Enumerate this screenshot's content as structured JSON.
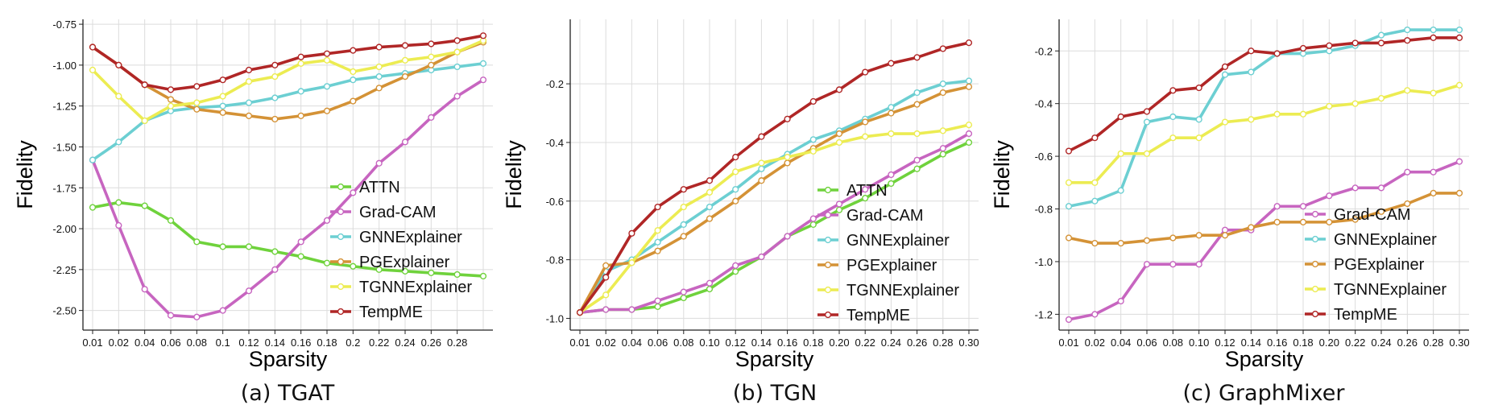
{
  "colors": {
    "ATTN": "#6fd23c",
    "Grad-CAM": "#c765c0",
    "GNNExplainer": "#6ccfd2",
    "PGExplainer": "#d49236",
    "TGNNExplainer": "#ecec52",
    "TempME": "#b02626"
  },
  "chart_data": [
    {
      "type": "line",
      "caption": "(a) TGAT",
      "xlabel": "Sparsity",
      "ylabel": "Fidelity",
      "x": [
        0.01,
        0.02,
        0.04,
        0.06,
        0.08,
        0.1,
        0.12,
        0.14,
        0.16,
        0.18,
        0.2,
        0.22,
        0.24,
        0.26,
        0.28,
        0.3
      ],
      "xticks": [
        "0.01",
        "0.02",
        "0.04",
        "0.06",
        "0.08",
        "0.1",
        "0.12",
        "0.14",
        "0.16",
        "0.18",
        "0.2",
        "0.22",
        "0.24",
        "0.26",
        "0.28"
      ],
      "yticks": [
        "-0.75",
        "-1.00",
        "-1.25",
        "-1.50",
        "-1.75",
        "-2.00",
        "-2.25",
        "-2.50"
      ],
      "ytick_values": [
        -0.75,
        -1.0,
        -1.25,
        -1.5,
        -1.75,
        -2.0,
        -2.25,
        -2.5
      ],
      "ylim": [
        -2.62,
        -0.72
      ],
      "grid": true,
      "legend_position": "lower-right",
      "legend": [
        "ATTN",
        "Grad-CAM",
        "GNNExplainer",
        "PGExplainer",
        "TGNNExplainer",
        "TempME"
      ],
      "series": [
        {
          "name": "ATTN",
          "values": [
            -1.87,
            -1.84,
            -1.86,
            -1.95,
            -2.08,
            -2.11,
            -2.11,
            -2.14,
            -2.17,
            -2.21,
            -2.23,
            -2.25,
            -2.26,
            -2.27,
            -2.28,
            -2.29
          ]
        },
        {
          "name": "Grad-CAM",
          "values": [
            -1.58,
            -1.98,
            -2.37,
            -2.53,
            -2.54,
            -2.5,
            -2.38,
            -2.25,
            -2.08,
            -1.95,
            -1.78,
            -1.6,
            -1.47,
            -1.32,
            -1.19,
            -1.09
          ]
        },
        {
          "name": "GNNExplainer",
          "values": [
            -1.58,
            -1.47,
            -1.34,
            -1.28,
            -1.26,
            -1.25,
            -1.23,
            -1.2,
            -1.16,
            -1.13,
            -1.09,
            -1.07,
            -1.05,
            -1.03,
            -1.01,
            -0.99
          ]
        },
        {
          "name": "PGExplainer",
          "values": [
            -0.89,
            -1.0,
            -1.12,
            -1.21,
            -1.27,
            -1.29,
            -1.31,
            -1.33,
            -1.31,
            -1.28,
            -1.22,
            -1.14,
            -1.07,
            -1.0,
            -0.92,
            -0.86
          ]
        },
        {
          "name": "TGNNExplainer",
          "values": [
            -1.03,
            -1.19,
            -1.34,
            -1.25,
            -1.23,
            -1.19,
            -1.1,
            -1.07,
            -0.99,
            -0.97,
            -1.04,
            -1.01,
            -0.97,
            -0.95,
            -0.92,
            -0.85
          ]
        },
        {
          "name": "TempME",
          "values": [
            -0.89,
            -1.0,
            -1.12,
            -1.15,
            -1.13,
            -1.09,
            -1.03,
            -1.0,
            -0.95,
            -0.93,
            -0.91,
            -0.89,
            -0.88,
            -0.87,
            -0.85,
            -0.82
          ]
        }
      ]
    },
    {
      "type": "line",
      "caption": "(b) TGN",
      "xlabel": "Sparsity",
      "ylabel": "Fidelity",
      "x": [
        0.01,
        0.02,
        0.04,
        0.06,
        0.08,
        0.1,
        0.12,
        0.14,
        0.16,
        0.18,
        0.2,
        0.22,
        0.24,
        0.26,
        0.28,
        0.3
      ],
      "xticks": [
        "0.01",
        "0.02",
        "0.04",
        "0.06",
        "0.08",
        "0.10",
        "0.12",
        "0.14",
        "0.16",
        "0.18",
        "0.20",
        "0.22",
        "0.24",
        "0.26",
        "0.28",
        "0.30"
      ],
      "yticks": [
        "-0.2",
        "-0.4",
        "-0.6",
        "-0.8",
        "-1.0"
      ],
      "ytick_values": [
        -0.2,
        -0.4,
        -0.6,
        -0.8,
        -1.0
      ],
      "ylim": [
        -1.04,
        0.02
      ],
      "grid": true,
      "legend_position": "lower-right",
      "legend": [
        "ATTN",
        "Grad-CAM",
        "GNNExplainer",
        "PGExplainer",
        "TGNNExplainer",
        "TempME"
      ],
      "series": [
        {
          "name": "ATTN",
          "values": [
            -0.98,
            -0.97,
            -0.97,
            -0.96,
            -0.93,
            -0.9,
            -0.84,
            -0.79,
            -0.72,
            -0.68,
            -0.63,
            -0.59,
            -0.54,
            -0.49,
            -0.44,
            -0.4
          ]
        },
        {
          "name": "Grad-CAM",
          "values": [
            -0.98,
            -0.97,
            -0.97,
            -0.94,
            -0.91,
            -0.88,
            -0.82,
            -0.79,
            -0.72,
            -0.66,
            -0.61,
            -0.56,
            -0.51,
            -0.46,
            -0.42,
            -0.37
          ]
        },
        {
          "name": "GNNExplainer",
          "values": [
            -0.98,
            -0.84,
            -0.8,
            -0.74,
            -0.68,
            -0.62,
            -0.56,
            -0.49,
            -0.44,
            -0.39,
            -0.36,
            -0.32,
            -0.28,
            -0.23,
            -0.2,
            -0.19
          ]
        },
        {
          "name": "PGExplainer",
          "values": [
            -0.98,
            -0.82,
            -0.81,
            -0.77,
            -0.72,
            -0.66,
            -0.6,
            -0.53,
            -0.47,
            -0.42,
            -0.37,
            -0.33,
            -0.3,
            -0.27,
            -0.23,
            -0.21
          ]
        },
        {
          "name": "TGNNExplainer",
          "values": [
            -0.98,
            -0.92,
            -0.81,
            -0.7,
            -0.62,
            -0.57,
            -0.5,
            -0.47,
            -0.45,
            -0.43,
            -0.4,
            -0.38,
            -0.37,
            -0.37,
            -0.36,
            -0.34
          ]
        },
        {
          "name": "TempME",
          "values": [
            -0.98,
            -0.86,
            -0.71,
            -0.62,
            -0.56,
            -0.53,
            -0.45,
            -0.38,
            -0.32,
            -0.26,
            -0.22,
            -0.16,
            -0.13,
            -0.11,
            -0.08,
            -0.06
          ]
        }
      ]
    },
    {
      "type": "line",
      "caption": "(c) GraphMixer",
      "xlabel": "Sparsity",
      "ylabel": "Fidelity",
      "x": [
        0.01,
        0.02,
        0.04,
        0.06,
        0.08,
        0.1,
        0.12,
        0.14,
        0.16,
        0.18,
        0.2,
        0.22,
        0.24,
        0.26,
        0.28,
        0.3
      ],
      "xticks": [
        "0.01",
        "0.02",
        "0.04",
        "0.06",
        "0.08",
        "0.10",
        "0.12",
        "0.14",
        "0.16",
        "0.18",
        "0.20",
        "0.22",
        "0.24",
        "0.26",
        "0.28",
        "0.30"
      ],
      "yticks": [
        "-0.2",
        "-0.4",
        "-0.6",
        "-0.8",
        "-1.0",
        "-1.2"
      ],
      "ytick_values": [
        -0.2,
        -0.4,
        -0.6,
        -0.8,
        -1.0,
        -1.2
      ],
      "ylim": [
        -1.26,
        -0.08
      ],
      "grid": true,
      "legend_position": "lower-right",
      "legend": [
        "Grad-CAM",
        "GNNExplainer",
        "PGExplainer",
        "TGNNExplainer",
        "TempME"
      ],
      "series": [
        {
          "name": "Grad-CAM",
          "values": [
            -1.22,
            -1.2,
            -1.15,
            -1.01,
            -1.01,
            -1.01,
            -0.88,
            -0.88,
            -0.79,
            -0.79,
            -0.75,
            -0.72,
            -0.72,
            -0.66,
            -0.66,
            -0.62
          ]
        },
        {
          "name": "GNNExplainer",
          "values": [
            -0.79,
            -0.77,
            -0.73,
            -0.47,
            -0.45,
            -0.46,
            -0.29,
            -0.28,
            -0.21,
            -0.21,
            -0.2,
            -0.18,
            -0.14,
            -0.12,
            -0.12,
            -0.12
          ]
        },
        {
          "name": "PGExplainer",
          "values": [
            -0.91,
            -0.93,
            -0.93,
            -0.92,
            -0.91,
            -0.9,
            -0.9,
            -0.87,
            -0.85,
            -0.85,
            -0.85,
            -0.84,
            -0.81,
            -0.78,
            -0.74,
            -0.74
          ]
        },
        {
          "name": "TGNNExplainer",
          "values": [
            -0.7,
            -0.7,
            -0.59,
            -0.59,
            -0.53,
            -0.53,
            -0.47,
            -0.46,
            -0.44,
            -0.44,
            -0.41,
            -0.4,
            -0.38,
            -0.35,
            -0.36,
            -0.33
          ]
        },
        {
          "name": "TempME",
          "values": [
            -0.58,
            -0.53,
            -0.45,
            -0.43,
            -0.35,
            -0.34,
            -0.26,
            -0.2,
            -0.21,
            -0.19,
            -0.18,
            -0.17,
            -0.17,
            -0.16,
            -0.15,
            -0.15
          ]
        }
      ]
    }
  ]
}
